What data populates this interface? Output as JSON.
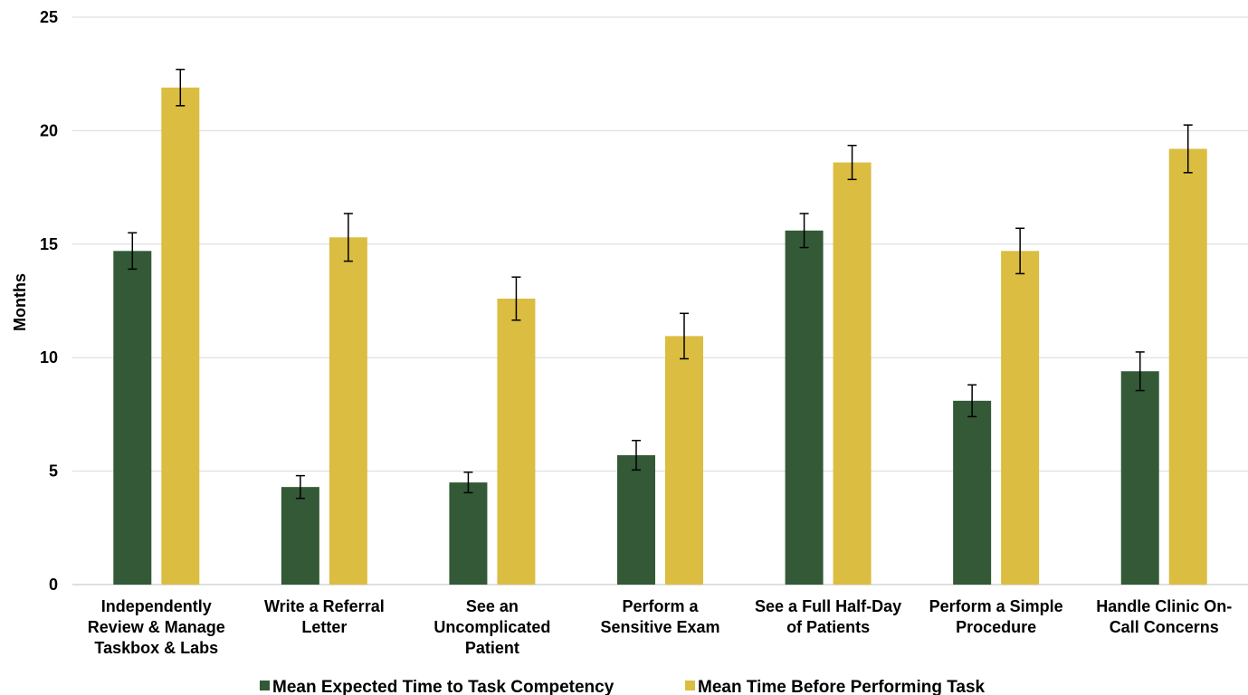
{
  "chart_data": {
    "type": "bar",
    "ylabel": "Months",
    "ylim": [
      0,
      25
    ],
    "yticks": [
      0,
      5,
      10,
      15,
      20,
      25
    ],
    "grid": true,
    "legend_position": "bottom",
    "categories": [
      [
        "Independently",
        "Review & Manage",
        "Taskbox & Labs"
      ],
      [
        "Write a Referral",
        "Letter"
      ],
      [
        "See an",
        "Uncomplicated",
        "Patient"
      ],
      [
        "Perform a",
        "Sensitive Exam"
      ],
      [
        "See a Full Half-Day",
        "of Patients"
      ],
      [
        "Perform a Simple",
        "Procedure"
      ],
      [
        "Handle Clinic On-",
        "Call Concerns"
      ]
    ],
    "series": [
      {
        "name": "Mean Expected Time to Task Competency",
        "color": "#335937",
        "values": [
          14.7,
          4.3,
          4.5,
          5.7,
          15.6,
          8.1,
          9.4
        ],
        "error": [
          0.8,
          0.5,
          0.45,
          0.65,
          0.75,
          0.7,
          0.85
        ]
      },
      {
        "name": "Mean Time Before Performing Task",
        "color": "#dbbd41",
        "values": [
          21.9,
          15.3,
          12.6,
          10.95,
          18.6,
          14.7,
          19.2
        ],
        "error": [
          0.8,
          1.05,
          0.95,
          1.0,
          0.75,
          1.0,
          1.05
        ]
      }
    ]
  }
}
